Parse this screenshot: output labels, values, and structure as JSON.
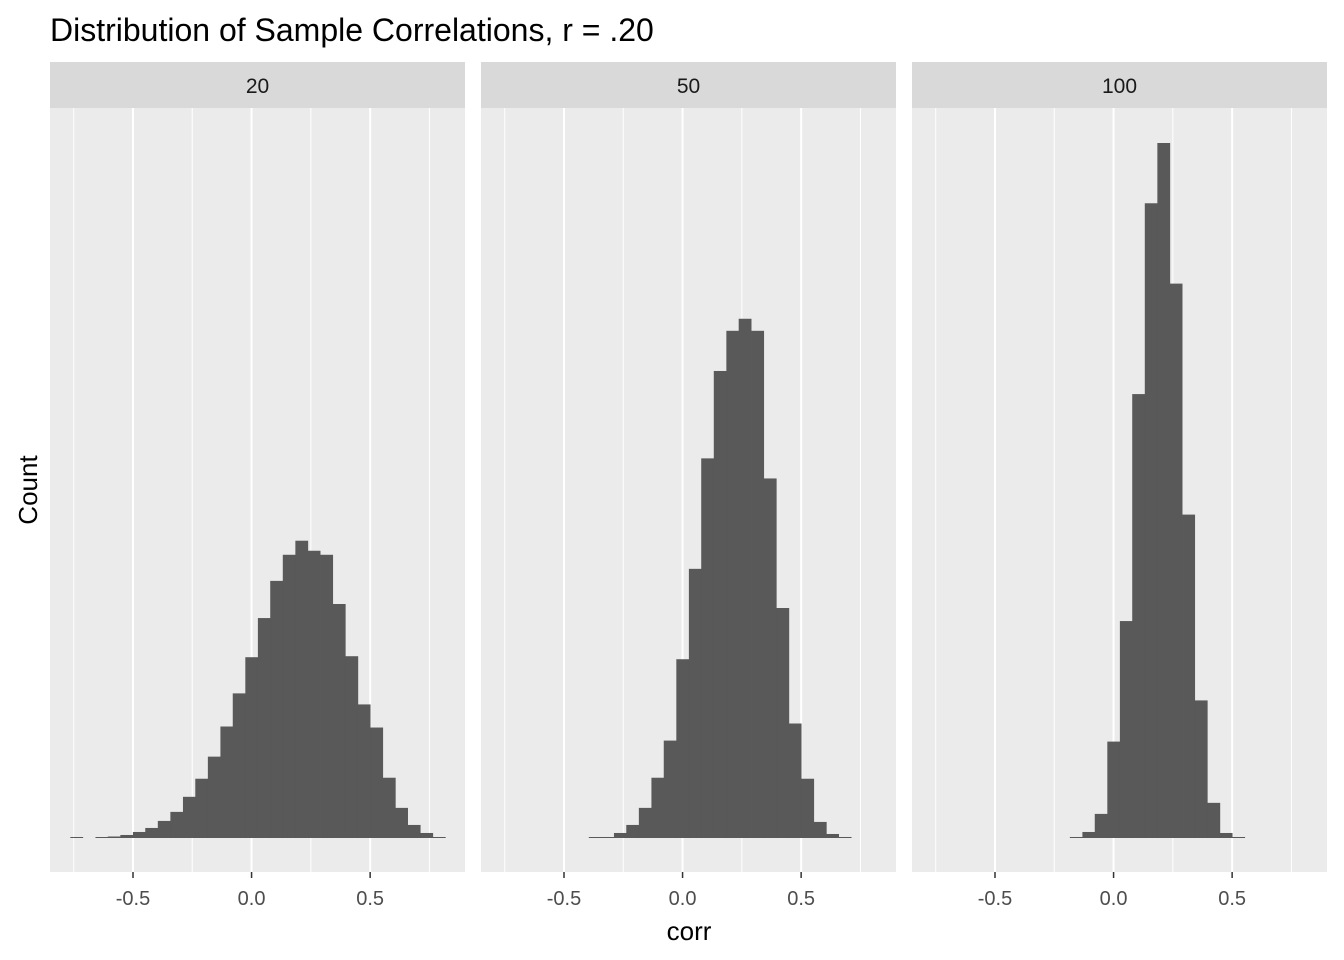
{
  "chart_data": {
    "type": "bar",
    "title": "Distribution of Sample Correlations, r = .20",
    "xlabel": "corr",
    "ylabel": "Count",
    "xlim": [
      -0.85,
      0.9
    ],
    "x_ticks": [
      -0.5,
      0.0,
      0.5
    ],
    "x_tick_labels": [
      "-0.5",
      "0.0",
      "0.5"
    ],
    "y_ticks_shown": false,
    "bin_width": 0.0527,
    "grid": true,
    "colors": {
      "bars": "#595959",
      "panel_bg": "#ebebeb",
      "strip_bg": "#d9d9d9",
      "grid": "#ffffff"
    },
    "panels": [
      {
        "label": "20",
        "bin_centers": [
          -0.738,
          -0.632,
          -0.58,
          -0.527,
          -0.474,
          -0.422,
          -0.369,
          -0.316,
          -0.263,
          -0.211,
          -0.158,
          -0.105,
          -0.053,
          0.0,
          0.053,
          0.105,
          0.158,
          0.211,
          0.263,
          0.316,
          0.369,
          0.422,
          0.474,
          0.527,
          0.58,
          0.632,
          0.685,
          0.738,
          0.791
        ],
        "counts": [
          1,
          0.5,
          1.5,
          3,
          6,
          10,
          17,
          26,
          41,
          59,
          81,
          111,
          144,
          180,
          219,
          256,
          282,
          296,
          286,
          282,
          233,
          181,
          133,
          110,
          60,
          30,
          13,
          5,
          1
        ]
      },
      {
        "label": "50",
        "bin_centers": [
          -0.369,
          -0.316,
          -0.263,
          -0.211,
          -0.158,
          -0.105,
          -0.053,
          0.0,
          0.053,
          0.105,
          0.158,
          0.211,
          0.263,
          0.316,
          0.369,
          0.422,
          0.474,
          0.527,
          0.58,
          0.632,
          0.685
        ],
        "counts": [
          0.5,
          1,
          5,
          13,
          30,
          60,
          97,
          178,
          268,
          378,
          465,
          505,
          517,
          505,
          358,
          229,
          114,
          59,
          16,
          4,
          1
        ]
      },
      {
        "label": "100",
        "bin_centers": [
          -0.158,
          -0.105,
          -0.053,
          0.0,
          0.053,
          0.105,
          0.158,
          0.211,
          0.263,
          0.316,
          0.369,
          0.422,
          0.474,
          0.527
        ],
        "counts": [
          1,
          6,
          24,
          96,
          216,
          442,
          632,
          692,
          552,
          322,
          137,
          35,
          5,
          1
        ]
      }
    ]
  }
}
